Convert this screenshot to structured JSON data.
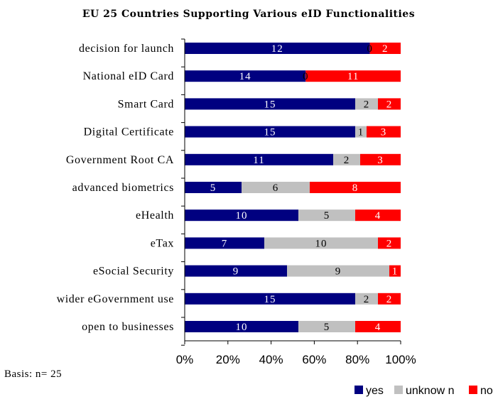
{
  "chart_data": {
    "type": "bar",
    "orientation": "horizontal",
    "stacked": "percent",
    "title": "EU 25 Countries Supporting Various eID Functionalities",
    "categories": [
      "decision for launch",
      "National eID Card",
      "Smart Card",
      "Digital Certificate",
      "Government Root CA",
      "advanced biometrics",
      "eHealth",
      "eTax",
      "eSocial Security",
      "wider eGovernment use",
      "open to businesses"
    ],
    "series": [
      {
        "name": "yes",
        "color": "#000080",
        "label_color": "#ffffff",
        "values": [
          12,
          14,
          15,
          15,
          11,
          5,
          10,
          7,
          9,
          15,
          10
        ]
      },
      {
        "name": "unknow n",
        "color": "#c0c0c0",
        "label_color": "#000000",
        "values": [
          0,
          0,
          2,
          1,
          2,
          6,
          5,
          10,
          9,
          2,
          5
        ]
      },
      {
        "name": "no",
        "color": "#ff0000",
        "label_color": "#ffffff",
        "values": [
          2,
          11,
          2,
          3,
          3,
          8,
          4,
          2,
          1,
          2,
          4
        ]
      }
    ],
    "xticks": [
      "0%",
      "20%",
      "40%",
      "60%",
      "80%",
      "100%"
    ],
    "xlim": [
      0,
      100
    ],
    "grid": false,
    "legend": "bottom-right",
    "footnote": "Basis: n= 25"
  }
}
